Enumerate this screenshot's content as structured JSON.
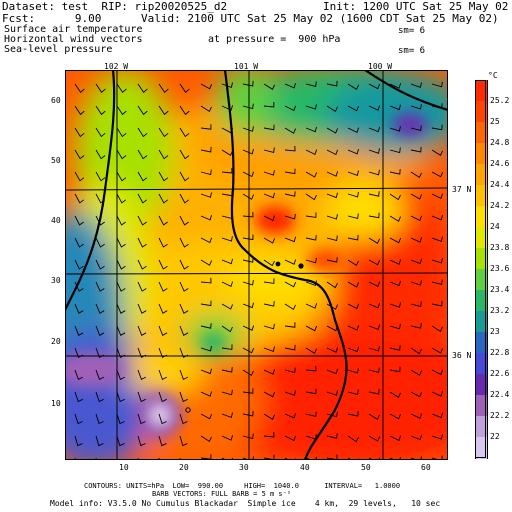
{
  "header": {
    "dataset_line": "Dataset: test  RIP: rip20020525_d2",
    "init_line": "Init: 1200 UTC Sat 25 May 02",
    "fcst_line": "Fcst:      9.00",
    "valid_line": "Valid: 2100 UTC Sat 25 May 02 (1600 CDT Sat 25 May 02)",
    "field1": "Surface air temperature",
    "field1_sm": "sm= 6",
    "field2": "Horizontal wind vectors",
    "field2_pressure": "at pressure =  900 hPa",
    "field3": "Sea-level pressure",
    "field3_sm": "sm= 6"
  },
  "map": {
    "longitude_labels": [
      "102 W",
      "101 W",
      "100 W"
    ],
    "latitude_labels": [
      "37 N",
      "36 N"
    ],
    "y_ticks": [
      "60",
      "50",
      "40",
      "30",
      "20",
      "10"
    ],
    "x_ticks": [
      "10",
      "20",
      "30",
      "40",
      "50",
      "60"
    ],
    "station_symbol": "o"
  },
  "colorbar": {
    "unit": "°C",
    "labels": [
      "25.2",
      "25",
      "24.8",
      "24.6",
      "24.4",
      "24.2",
      "24",
      "23.8",
      "23.6",
      "23.4",
      "23.2",
      "23",
      "22.8",
      "22.6",
      "22.4",
      "22.2",
      "22"
    ],
    "colors": [
      "#ff2a00",
      "#ff4400",
      "#ff6600",
      "#ff8800",
      "#ffa500",
      "#ffc000",
      "#ffdd00",
      "#e0e800",
      "#a8e000",
      "#60d040",
      "#28b868",
      "#189a98",
      "#2868c0",
      "#4848d8",
      "#6828b0",
      "#a060b8",
      "#c0a0d8",
      "#d8c8f0"
    ]
  },
  "footer": {
    "contours_line": "CONTOURS: UNITS=hPa  LOW=  990.00     HIGH=  1040.0      INTERVAL=   1.0000",
    "barb_line": "BARB VECTORS: FULL BARB = 5 m s⁻¹",
    "model_line": "Model info: V3.5.0 No Cumulus Blackadar  Simple ice    4 km,  29 levels,   10 sec"
  }
}
